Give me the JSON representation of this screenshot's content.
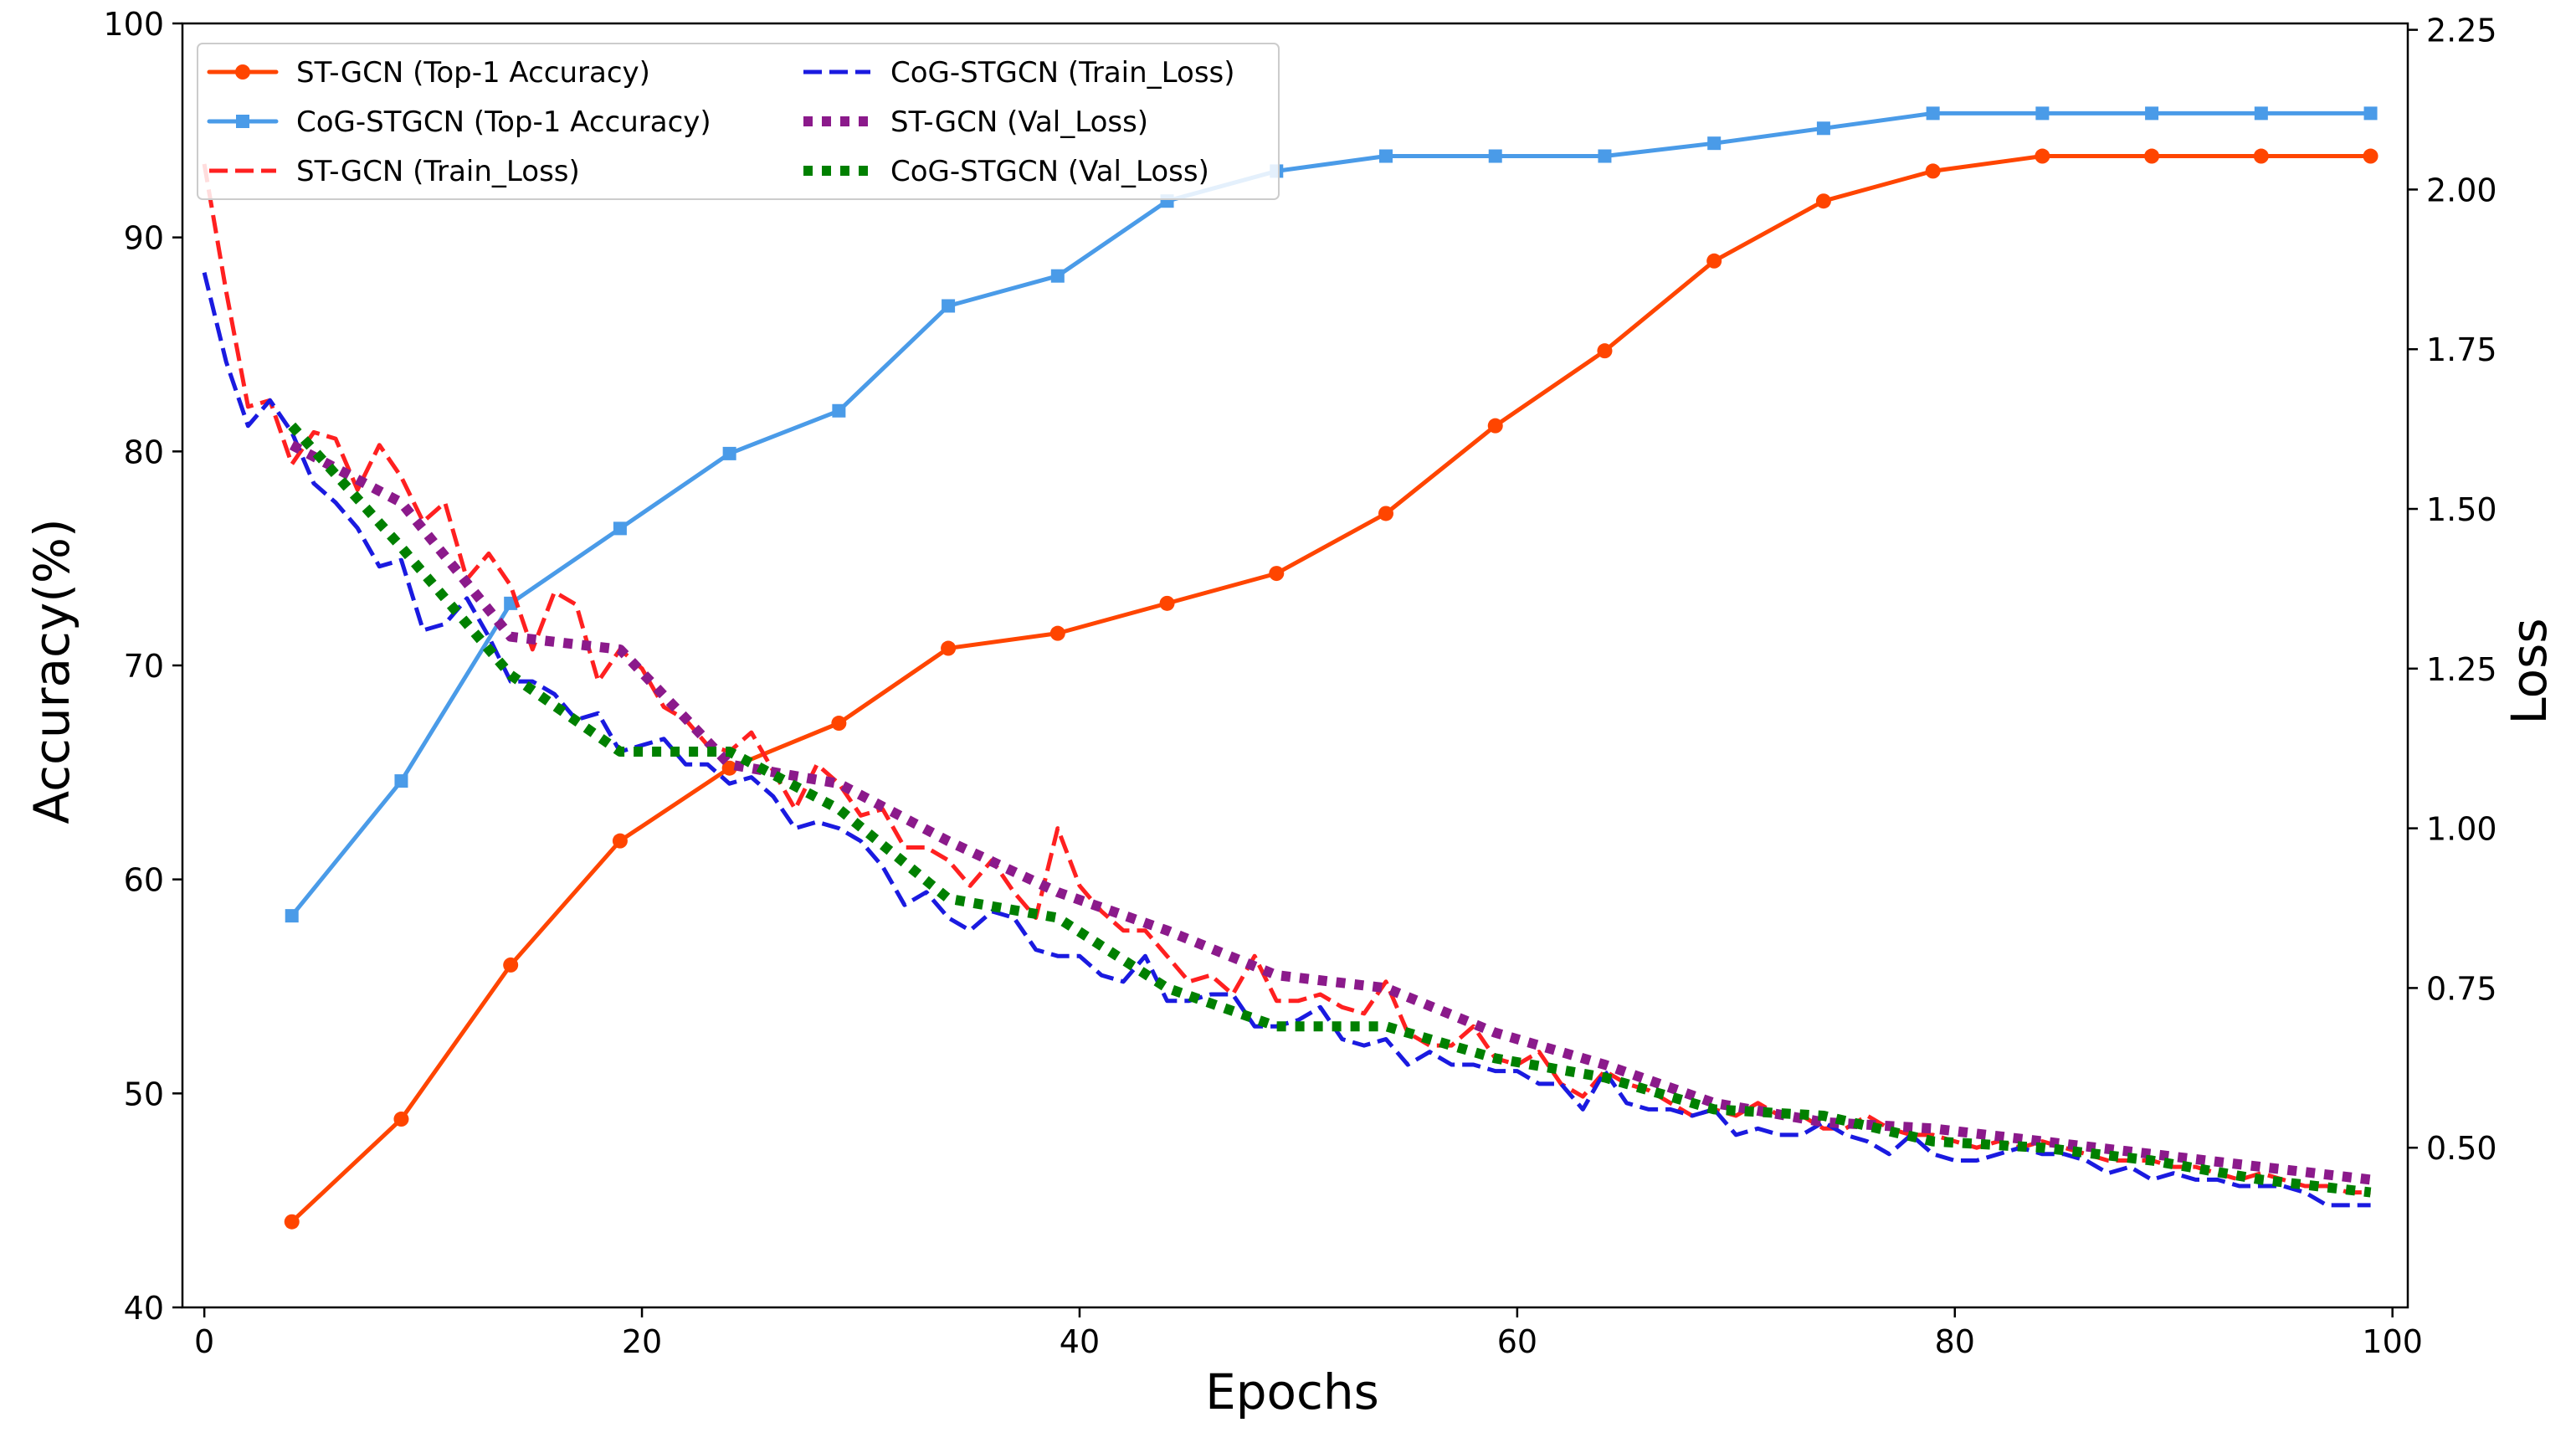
{
  "chart_data": {
    "type": "line",
    "xlabel": "Epochs",
    "ylabel": "Accuracy(%)",
    "y2label": "Loss",
    "xlim": [
      -1,
      100.7
    ],
    "ylim": [
      40,
      100
    ],
    "y2lim": [
      0.25,
      2.26
    ],
    "xticks": [
      0,
      20,
      40,
      60,
      80,
      100
    ],
    "yticks": [
      40,
      50,
      60,
      70,
      80,
      90,
      100
    ],
    "y2ticks": [
      0.5,
      0.75,
      1.0,
      1.25,
      1.5,
      1.75,
      2.0,
      2.25
    ],
    "y2tick_labels": [
      "0.50",
      "0.75",
      "1.00",
      "1.25",
      "1.50",
      "1.75",
      "2.00",
      "2.25"
    ],
    "legend_position": "top-left",
    "series": [
      {
        "name": "ST-GCN (Top-1 Accuracy)",
        "axis": "left",
        "style": "solid",
        "marker": "circle",
        "color": "#ff4500",
        "x": [
          4,
          9,
          14,
          19,
          24,
          29,
          34,
          39,
          44,
          49,
          54,
          59,
          64,
          69,
          74,
          79,
          84,
          89,
          94,
          99
        ],
        "values": [
          44.0,
          48.8,
          56.0,
          61.8,
          65.2,
          67.3,
          70.8,
          71.5,
          72.9,
          74.3,
          77.1,
          81.2,
          84.7,
          88.9,
          91.7,
          93.1,
          93.8,
          93.8,
          93.8,
          93.8
        ]
      },
      {
        "name": "CoG-STGCN (Top-1 Accuracy)",
        "axis": "left",
        "style": "solid",
        "marker": "square",
        "color": "#4a9be8",
        "x": [
          4,
          9,
          14,
          19,
          24,
          29,
          34,
          39,
          44,
          49,
          54,
          59,
          64,
          69,
          74,
          79,
          84,
          89,
          94,
          99
        ],
        "values": [
          58.3,
          64.6,
          72.9,
          76.4,
          79.9,
          81.9,
          86.8,
          88.2,
          91.7,
          93.1,
          93.8,
          93.8,
          93.8,
          94.4,
          95.1,
          95.8,
          95.8,
          95.8,
          95.8,
          95.8
        ]
      },
      {
        "name": "ST-GCN (Train_Loss)",
        "axis": "right",
        "style": "dashed",
        "color": "#ff2020",
        "x": [
          0,
          1,
          2,
          3,
          4,
          5,
          6,
          7,
          8,
          9,
          10,
          11,
          12,
          13,
          14,
          15,
          16,
          17,
          18,
          19,
          20,
          21,
          22,
          23,
          24,
          25,
          26,
          27,
          28,
          29,
          30,
          31,
          32,
          33,
          34,
          35,
          36,
          37,
          38,
          39,
          40,
          41,
          42,
          43,
          44,
          45,
          46,
          47,
          48,
          49,
          50,
          51,
          52,
          53,
          54,
          55,
          56,
          57,
          58,
          59,
          60,
          61,
          62,
          63,
          64,
          65,
          66,
          67,
          68,
          69,
          70,
          71,
          72,
          73,
          74,
          75,
          76,
          77,
          78,
          79,
          80,
          81,
          82,
          83,
          84,
          85,
          86,
          87,
          88,
          89,
          90,
          91,
          92,
          93,
          94,
          95,
          96,
          97,
          98,
          99
        ],
        "values": [
          2.04,
          1.84,
          1.66,
          1.67,
          1.57,
          1.62,
          1.61,
          1.53,
          1.6,
          1.55,
          1.48,
          1.51,
          1.39,
          1.43,
          1.38,
          1.28,
          1.37,
          1.35,
          1.23,
          1.28,
          1.25,
          1.19,
          1.17,
          1.13,
          1.12,
          1.15,
          1.09,
          1.03,
          1.1,
          1.07,
          1.02,
          1.03,
          0.97,
          0.97,
          0.95,
          0.91,
          0.95,
          0.9,
          0.86,
          1.0,
          0.91,
          0.87,
          0.84,
          0.84,
          0.8,
          0.76,
          0.77,
          0.74,
          0.8,
          0.73,
          0.73,
          0.74,
          0.72,
          0.71,
          0.76,
          0.68,
          0.66,
          0.66,
          0.69,
          0.64,
          0.63,
          0.65,
          0.6,
          0.58,
          0.62,
          0.6,
          0.59,
          0.57,
          0.55,
          0.56,
          0.55,
          0.57,
          0.55,
          0.55,
          0.53,
          0.53,
          0.55,
          0.53,
          0.52,
          0.52,
          0.51,
          0.5,
          0.51,
          0.5,
          0.51,
          0.5,
          0.49,
          0.48,
          0.48,
          0.48,
          0.47,
          0.47,
          0.46,
          0.45,
          0.46,
          0.45,
          0.44,
          0.44,
          0.43,
          0.43
        ]
      },
      {
        "name": "CoG-STGCN (Train_Loss)",
        "axis": "right",
        "style": "dashed",
        "color": "#1a1ae0",
        "x": [
          0,
          1,
          2,
          3,
          4,
          5,
          6,
          7,
          8,
          9,
          10,
          11,
          12,
          13,
          14,
          15,
          16,
          17,
          18,
          19,
          20,
          21,
          22,
          23,
          24,
          25,
          26,
          27,
          28,
          29,
          30,
          31,
          32,
          33,
          34,
          35,
          36,
          37,
          38,
          39,
          40,
          41,
          42,
          43,
          44,
          45,
          46,
          47,
          48,
          49,
          50,
          51,
          52,
          53,
          54,
          55,
          56,
          57,
          58,
          59,
          60,
          61,
          62,
          63,
          64,
          65,
          66,
          67,
          68,
          69,
          70,
          71,
          72,
          73,
          74,
          75,
          76,
          77,
          78,
          79,
          80,
          81,
          82,
          83,
          84,
          85,
          86,
          87,
          88,
          89,
          90,
          91,
          92,
          93,
          94,
          95,
          96,
          97,
          98,
          99
        ],
        "values": [
          1.87,
          1.73,
          1.63,
          1.67,
          1.62,
          1.54,
          1.51,
          1.47,
          1.41,
          1.42,
          1.31,
          1.32,
          1.36,
          1.3,
          1.23,
          1.23,
          1.21,
          1.17,
          1.18,
          1.12,
          1.13,
          1.14,
          1.1,
          1.1,
          1.07,
          1.08,
          1.05,
          1.0,
          1.01,
          1.0,
          0.98,
          0.94,
          0.88,
          0.9,
          0.86,
          0.84,
          0.87,
          0.86,
          0.81,
          0.8,
          0.8,
          0.77,
          0.76,
          0.8,
          0.73,
          0.73,
          0.74,
          0.74,
          0.69,
          0.69,
          0.7,
          0.72,
          0.67,
          0.66,
          0.67,
          0.63,
          0.65,
          0.63,
          0.63,
          0.62,
          0.62,
          0.6,
          0.6,
          0.56,
          0.62,
          0.57,
          0.56,
          0.56,
          0.55,
          0.56,
          0.52,
          0.53,
          0.52,
          0.52,
          0.54,
          0.52,
          0.51,
          0.49,
          0.52,
          0.49,
          0.48,
          0.48,
          0.49,
          0.5,
          0.49,
          0.49,
          0.48,
          0.46,
          0.47,
          0.45,
          0.46,
          0.45,
          0.45,
          0.44,
          0.44,
          0.44,
          0.43,
          0.41,
          0.41,
          0.41
        ]
      },
      {
        "name": "ST-GCN (Val_Loss)",
        "axis": "right",
        "style": "dotted",
        "color": "#8b1a8b",
        "x": [
          4,
          9,
          14,
          19,
          24,
          29,
          34,
          39,
          44,
          49,
          54,
          59,
          64,
          69,
          74,
          79,
          84,
          89,
          94,
          99
        ],
        "values": [
          1.6,
          1.51,
          1.3,
          1.28,
          1.1,
          1.07,
          0.98,
          0.9,
          0.84,
          0.77,
          0.75,
          0.68,
          0.63,
          0.57,
          0.54,
          0.53,
          0.51,
          0.49,
          0.47,
          0.45
        ]
      },
      {
        "name": "CoG-STGCN (Val_Loss)",
        "axis": "right",
        "style": "dotted",
        "color": "#008000",
        "x": [
          4,
          9,
          14,
          19,
          24,
          29,
          34,
          39,
          44,
          49,
          54,
          59,
          64,
          69,
          74,
          79,
          84,
          89,
          94,
          99
        ],
        "values": [
          1.63,
          1.44,
          1.24,
          1.12,
          1.12,
          1.03,
          0.89,
          0.86,
          0.75,
          0.69,
          0.69,
          0.64,
          0.61,
          0.56,
          0.55,
          0.51,
          0.5,
          0.48,
          0.45,
          0.43
        ]
      }
    ]
  }
}
